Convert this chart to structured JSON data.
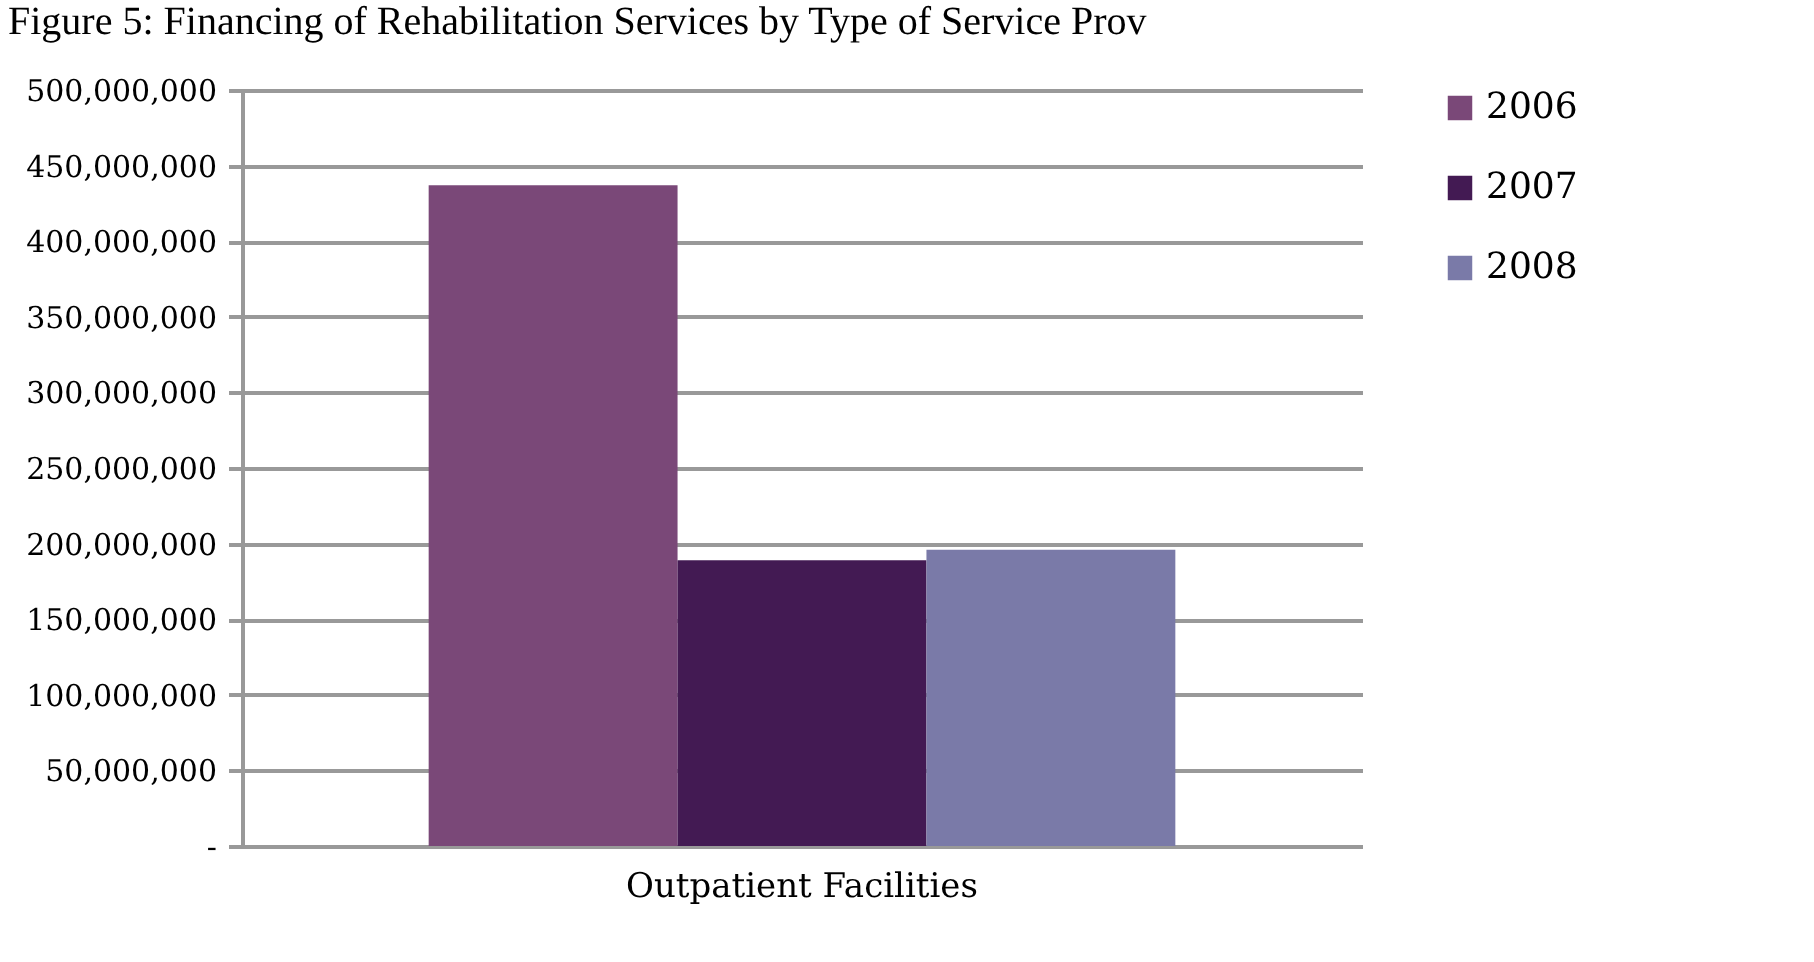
{
  "chart_data": {
    "type": "bar",
    "title": "Figure 5: Financing of Rehabilitation Services by Type of Service Prov",
    "categories": [
      "Outpatient Facilities"
    ],
    "series": [
      {
        "name": "2006",
        "color": "#7a4878",
        "values": [
          437000000
        ]
      },
      {
        "name": "2007",
        "color": "#431a53",
        "values": [
          189000000
        ]
      },
      {
        "name": "2008",
        "color": "#7a7aa8",
        "values": [
          196000000
        ]
      }
    ],
    "ylim": [
      0,
      500000000
    ],
    "yticks": [
      {
        "value": 0,
        "label": "-"
      },
      {
        "value": 50000000,
        "label": "50,000,000"
      },
      {
        "value": 100000000,
        "label": "100,000,000"
      },
      {
        "value": 150000000,
        "label": "150,000,000"
      },
      {
        "value": 200000000,
        "label": "200,000,000"
      },
      {
        "value": 250000000,
        "label": "250,000,000"
      },
      {
        "value": 300000000,
        "label": "300,000,000"
      },
      {
        "value": 350000000,
        "label": "350,000,000"
      },
      {
        "value": 400000000,
        "label": "400,000,000"
      },
      {
        "value": 450000000,
        "label": "450,000,000"
      },
      {
        "value": 500000000,
        "label": "500,000,000"
      }
    ],
    "grid": "y",
    "legend": "right"
  }
}
